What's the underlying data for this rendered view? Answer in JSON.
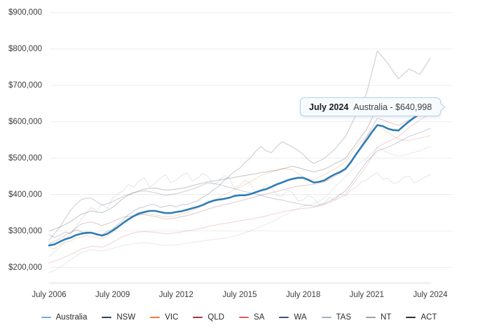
{
  "accent_color": "#2e7db6",
  "background_color": "#ffffff",
  "tooltip": {
    "date": "July 2024",
    "text": "Australia - $640,998",
    "series": "Australia",
    "value": "$640,998"
  },
  "chart_data": {
    "type": "line",
    "title": "",
    "xlabel": "",
    "ylabel": "",
    "grid": "horizontal",
    "legend_position": "bottom",
    "x_start_year": 2006.5,
    "x_step_years": 0.25,
    "xlim": [
      2006.5,
      2024.5
    ],
    "ylim_dollars": [
      200000,
      900000
    ],
    "y_tick_labels": [
      "$900,000",
      "$800,000",
      "$700,000",
      "$600,000",
      "$500,000",
      "$400,000",
      "$300,000",
      "$200,000"
    ],
    "x_tick_labels": [
      "July 2006",
      "July 2009",
      "July 2012",
      "July 2015",
      "July 2018",
      "July 2021",
      "July 2024"
    ],
    "x_tick_years": [
      2006.5,
      2009.5,
      2012.5,
      2015.5,
      2018.5,
      2021.5,
      2024.5
    ],
    "highlight_series": "Australia",
    "highlight_last_value_label": "$640,998",
    "values_unit": "thousand dollars",
    "series": [
      {
        "name": "Australia",
        "color": "#2e7db6",
        "swatch": "#6fafd8",
        "muted": false,
        "values": [
          260,
          263,
          270,
          277,
          281,
          288,
          292,
          295,
          295,
          291,
          287,
          292,
          301,
          311,
          322,
          332,
          341,
          348,
          352,
          355,
          355,
          352,
          349,
          349,
          352,
          354,
          358,
          362,
          366,
          371,
          378,
          383,
          386,
          388,
          391,
          396,
          398,
          398,
          401,
          406,
          411,
          415,
          421,
          428,
          433,
          439,
          443,
          446,
          446,
          440,
          433,
          435,
          439,
          448,
          456,
          462,
          471,
          489,
          511,
          531,
          551,
          572,
          591,
          588,
          581,
          577,
          576,
          589,
          601,
          612,
          621,
          630,
          641
        ]
      },
      {
        "name": "NSW",
        "color": "#2d4357",
        "swatch": "#2d4357",
        "muted": true,
        "values": [
          290,
          282,
          288,
          296,
          293,
          303,
          299,
          291,
          296,
          288,
          290,
          299,
          305,
          318,
          330,
          345,
          355,
          363,
          366,
          372,
          372,
          365,
          368,
          370,
          366,
          372,
          372,
          378,
          382,
          393,
          400,
          413,
          422,
          438,
          450,
          463,
          472,
          488,
          500,
          518,
          532,
          520,
          515,
          532,
          545,
          538,
          530,
          522,
          510,
          495,
          485,
          492,
          500,
          512,
          525,
          542,
          560,
          590,
          620,
          650,
          680,
          738,
          795,
          778,
          760,
          738,
          718,
          732,
          745,
          738,
          730,
          752,
          775
        ]
      },
      {
        "name": "VIC",
        "color": "#e0823f",
        "swatch": "#e0823f",
        "muted": true,
        "values": [
          255,
          250,
          262,
          268,
          272,
          280,
          283,
          287,
          285,
          281,
          278,
          286,
          295,
          308,
          320,
          330,
          338,
          344,
          348,
          346,
          345,
          341,
          338,
          340,
          342,
          346,
          350,
          356,
          362,
          370,
          378,
          385,
          392,
          399,
          405,
          413,
          420,
          428,
          435,
          444,
          452,
          457,
          462,
          467,
          472,
          470,
          468,
          458,
          448,
          443,
          440,
          448,
          455,
          462,
          470,
          480,
          490,
          510,
          530,
          546,
          560,
          576,
          592,
          581,
          570,
          561,
          552,
          550,
          548,
          552,
          555,
          558,
          562
        ]
      },
      {
        "name": "QLD",
        "color": "#9e3a40",
        "swatch": "#9e3a40",
        "muted": true,
        "values": [
          265,
          271,
          278,
          287,
          295,
          307,
          318,
          322,
          325,
          320,
          315,
          320,
          325,
          332,
          338,
          340,
          342,
          344,
          345,
          342,
          340,
          336,
          332,
          334,
          336,
          339,
          342,
          346,
          350,
          355,
          360,
          364,
          368,
          372,
          375,
          379,
          382,
          386,
          390,
          394,
          398,
          402,
          405,
          409,
          412,
          416,
          420,
          423,
          425,
          426,
          428,
          431,
          435,
          442,
          450,
          459,
          468,
          489,
          510,
          535,
          560,
          585,
          610,
          605,
          600,
          595,
          590,
          598,
          605,
          612,
          618,
          625,
          632
        ]
      },
      {
        "name": "SA",
        "color": "#e25e5e",
        "swatch": "#e25e5e",
        "muted": true,
        "values": [
          212,
          217,
          222,
          228,
          235,
          242,
          250,
          254,
          258,
          257,
          255,
          261,
          268,
          277,
          285,
          290,
          295,
          297,
          298,
          297,
          296,
          294,
          292,
          293,
          295,
          297,
          300,
          302,
          305,
          308,
          312,
          315,
          318,
          320,
          322,
          325,
          328,
          330,
          332,
          335,
          338,
          341,
          345,
          348,
          352,
          355,
          358,
          360,
          362,
          363,
          365,
          368,
          372,
          378,
          385,
          392,
          400,
          420,
          440,
          460,
          480,
          505,
          530,
          538,
          545,
          552,
          560,
          572,
          585,
          595,
          605,
          613,
          622
        ]
      },
      {
        "name": "WA",
        "color": "#40517d",
        "swatch": "#40517d",
        "muted": true,
        "values": [
          275,
          292,
          310,
          333,
          355,
          372,
          385,
          390,
          390,
          380,
          370,
          375,
          380,
          388,
          395,
          400,
          405,
          408,
          410,
          408,
          405,
          401,
          398,
          400,
          402,
          406,
          410,
          415,
          420,
          426,
          432,
          430,
          428,
          424,
          420,
          416,
          412,
          408,
          405,
          401,
          398,
          394,
          390,
          387,
          385,
          381,
          378,
          375,
          372,
          370,
          368,
          371,
          375,
          382,
          390,
          400,
          410,
          430,
          450,
          470,
          490,
          505,
          520,
          525,
          530,
          537,
          545,
          552,
          560,
          565,
          570,
          576,
          582
        ]
      },
      {
        "name": "TAS",
        "color": "#a6b1ba",
        "swatch": "#a6b1ba",
        "muted": true,
        "values": [
          185,
          192,
          200,
          210,
          220,
          230,
          240,
          244,
          248,
          246,
          245,
          248,
          252,
          256,
          260,
          262,
          265,
          266,
          268,
          266,
          264,
          262,
          260,
          261,
          262,
          264,
          266,
          268,
          270,
          272,
          275,
          276,
          278,
          280,
          282,
          286,
          290,
          295,
          300,
          306,
          312,
          318,
          325,
          332,
          340,
          347,
          355,
          361,
          368,
          371,
          375,
          382,
          390,
          405,
          420,
          435,
          450,
          465,
          480,
          490,
          500,
          515,
          530,
          522,
          515,
          510,
          505,
          508,
          512,
          516,
          520,
          526,
          532
        ]
      },
      {
        "name": "NT",
        "color": "#9aa1a7",
        "swatch": "#9aa1a7",
        "muted": true,
        "values": [
          230,
          242,
          255,
          272,
          290,
          310,
          330,
          348,
          365,
          355,
          375,
          362,
          390,
          402,
          410,
          428,
          420,
          438,
          445,
          420,
          430,
          445,
          455,
          432,
          440,
          452,
          460,
          438,
          445,
          458,
          450,
          428,
          435,
          452,
          445,
          418,
          425,
          440,
          430,
          405,
          410,
          428,
          420,
          398,
          395,
          412,
          405,
          382,
          385,
          398,
          390,
          372,
          378,
          392,
          385,
          402,
          395,
          412,
          420,
          435,
          440,
          452,
          460,
          442,
          445,
          430,
          435,
          448,
          450,
          432,
          440,
          448,
          455
        ]
      },
      {
        "name": "ACT",
        "color": "#2e2e2e",
        "swatch": "#2e2e2e",
        "muted": true,
        "values": [
          300,
          305,
          310,
          317,
          325,
          335,
          345,
          350,
          355,
          352,
          350,
          357,
          365,
          377,
          390,
          398,
          405,
          410,
          415,
          417,
          418,
          415,
          412,
          413,
          415,
          417,
          420,
          424,
          428,
          431,
          435,
          437,
          440,
          442,
          445,
          447,
          450,
          452,
          455,
          457,
          460,
          462,
          465,
          467,
          470,
          474,
          478,
          474,
          470,
          466,
          462,
          466,
          470,
          477,
          485,
          492,
          500,
          520,
          540,
          560,
          580,
          610,
          640,
          648,
          655,
          642,
          630,
          635,
          640,
          644,
          648,
          651,
          655
        ]
      }
    ]
  }
}
